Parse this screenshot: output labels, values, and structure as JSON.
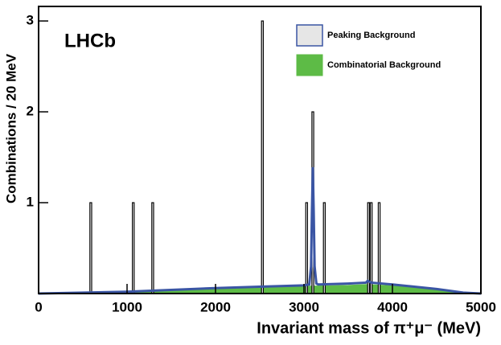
{
  "chart_data": {
    "type": "histogram",
    "annotation": "LHCb",
    "x_label": "Invariant mass of π⁺μ⁻ (MeV)",
    "y_label": "Combinations / 20 MeV",
    "xlim": [
      0,
      5000
    ],
    "ylim": [
      0,
      3.16
    ],
    "xticks": [
      0,
      1000,
      2000,
      3000,
      4000,
      5000
    ],
    "yticks": [
      1,
      2,
      3
    ],
    "legend": "upper right",
    "data": {
      "color": "#000000",
      "bins": [
        [
          580,
          600
        ],
        [
          1060,
          1080
        ],
        [
          1280,
          1300
        ],
        [
          2520,
          2540
        ],
        [
          3020,
          3040
        ],
        [
          3090,
          3110
        ],
        [
          3220,
          3240
        ],
        [
          3720,
          3740
        ],
        [
          3750,
          3770
        ],
        [
          3840,
          3860
        ]
      ],
      "values": [
        1,
        1,
        1,
        3,
        1,
        2,
        1,
        1,
        1,
        1
      ]
    },
    "series": [
      {
        "name": "Combinatorial Background",
        "color": "#5dbb46",
        "x": [
          0,
          500,
          1000,
          1500,
          2000,
          2500,
          3000,
          3500,
          3700,
          4000,
          4500,
          4800,
          5000
        ],
        "values": [
          0,
          0.01,
          0.02,
          0.035,
          0.05,
          0.065,
          0.08,
          0.09,
          0.1,
          0.085,
          0.04,
          0.005,
          0
        ]
      },
      {
        "name": "Peaking Background",
        "color": "#3a55a4",
        "x": [
          0,
          1000,
          2000,
          2500,
          3000,
          3060,
          3080,
          3090,
          3100,
          3110,
          3120,
          3140,
          3160,
          3500,
          3700,
          3720,
          3760,
          4000,
          4500,
          4800,
          5000
        ],
        "values": [
          0,
          0.02,
          0.06,
          0.075,
          0.09,
          0.1,
          0.3,
          0.9,
          1.39,
          0.9,
          0.3,
          0.11,
          0.1,
          0.11,
          0.12,
          0.14,
          0.12,
          0.1,
          0.05,
          0.01,
          0
        ]
      }
    ]
  }
}
